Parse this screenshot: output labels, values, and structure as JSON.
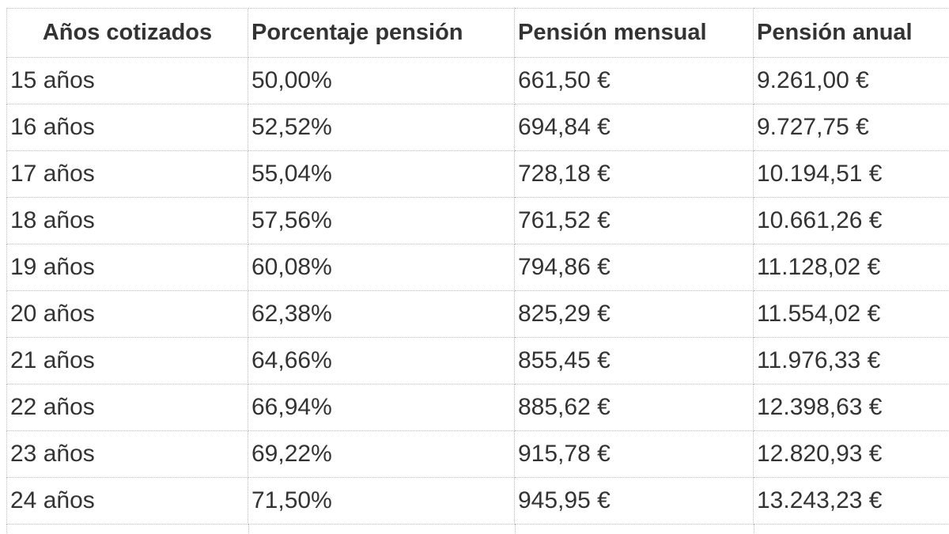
{
  "table": {
    "header": [
      "Años cotizados",
      "Porcentaje pensión",
      "Pensión mensual",
      "Pensión anual"
    ],
    "rows": [
      [
        "15 años",
        "50,00%",
        "661,50 €",
        "9.261,00 €"
      ],
      [
        "16 años",
        "52,52%",
        "694,84 €",
        "9.727,75 €"
      ],
      [
        "17 años",
        "55,04%",
        "728,18 €",
        "10.194,51 €"
      ],
      [
        "18 años",
        "57,56%",
        "761,52 €",
        "10.661,26 €"
      ],
      [
        "19 años",
        "60,08%",
        "794,86 €",
        "11.128,02 €"
      ],
      [
        "20 años",
        "62,38%",
        "825,29 €",
        "11.554,02 €"
      ],
      [
        "21 años",
        "64,66%",
        "855,45 €",
        "11.976,33 €"
      ],
      [
        "22 años",
        "66,94%",
        "885,62 €",
        "12.398,63 €"
      ],
      [
        "23 años",
        "69,22%",
        "915,78 €",
        "12.820,93 €"
      ],
      [
        "24 años",
        "71,50%",
        "945,95 €",
        "13.243,23 €"
      ]
    ]
  }
}
